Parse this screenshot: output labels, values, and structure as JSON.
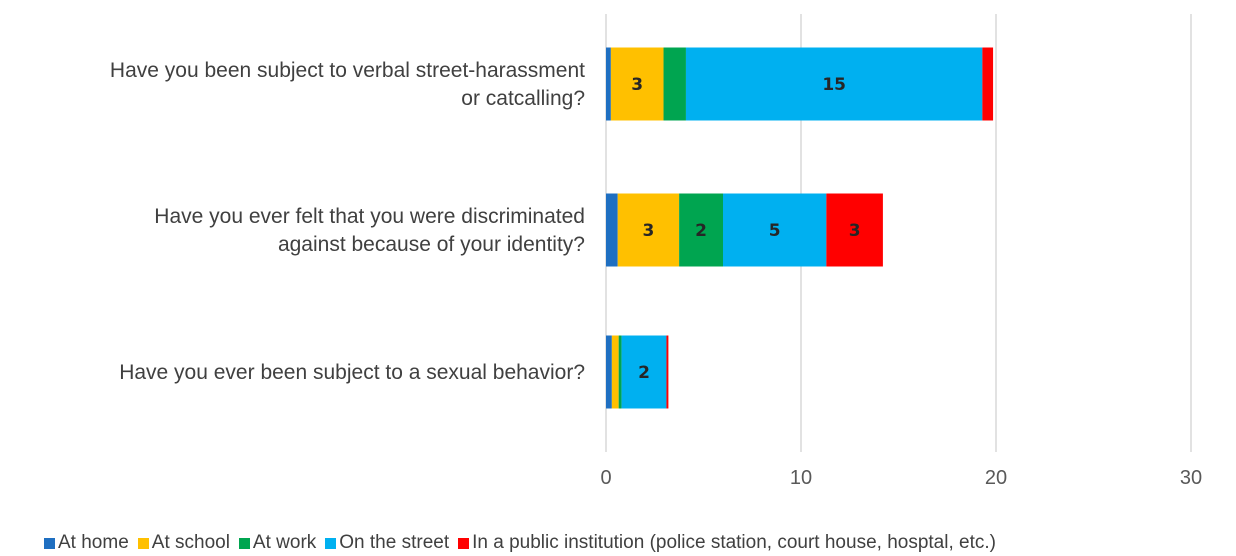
{
  "chart_data": {
    "type": "bar",
    "orientation": "horizontal",
    "stacked": true,
    "categories": [
      [
        "Have you been subject to verbal street-harassment",
        "or catcalling?"
      ],
      [
        "Have you ever felt that you were discriminated",
        "against because of your identity?"
      ],
      [
        "Have you ever been subject to a sexual behavior?"
      ]
    ],
    "series": [
      {
        "name": "At home",
        "color": "#1F6FC1",
        "values": [
          0.25,
          0.6,
          0.3
        ],
        "labels": [
          "",
          "",
          ""
        ]
      },
      {
        "name": "At school",
        "color": "#FFC000",
        "values": [
          2.7,
          3.15,
          0.35
        ],
        "labels": [
          "3",
          "3",
          ""
        ]
      },
      {
        "name": "At work",
        "color": "#00A550",
        "values": [
          1.15,
          2.25,
          0.15
        ],
        "labels": [
          "",
          "2",
          ""
        ]
      },
      {
        "name": "On the street",
        "color": "#00B0F0",
        "values": [
          15.2,
          5.3,
          2.3
        ],
        "labels": [
          "15",
          "5",
          "2"
        ]
      },
      {
        "name": "In a public institution (police station, court house, hosptal, etc.)",
        "color": "#FF0000",
        "values": [
          0.55,
          2.9,
          0.1
        ],
        "labels": [
          "",
          "3",
          ""
        ]
      }
    ],
    "xlim": [
      0,
      30
    ],
    "xticks": [
      "0",
      "10",
      "20",
      "30"
    ],
    "grid": true,
    "legend_position": "bottom",
    "title": "",
    "xlabel": "",
    "ylabel": ""
  }
}
